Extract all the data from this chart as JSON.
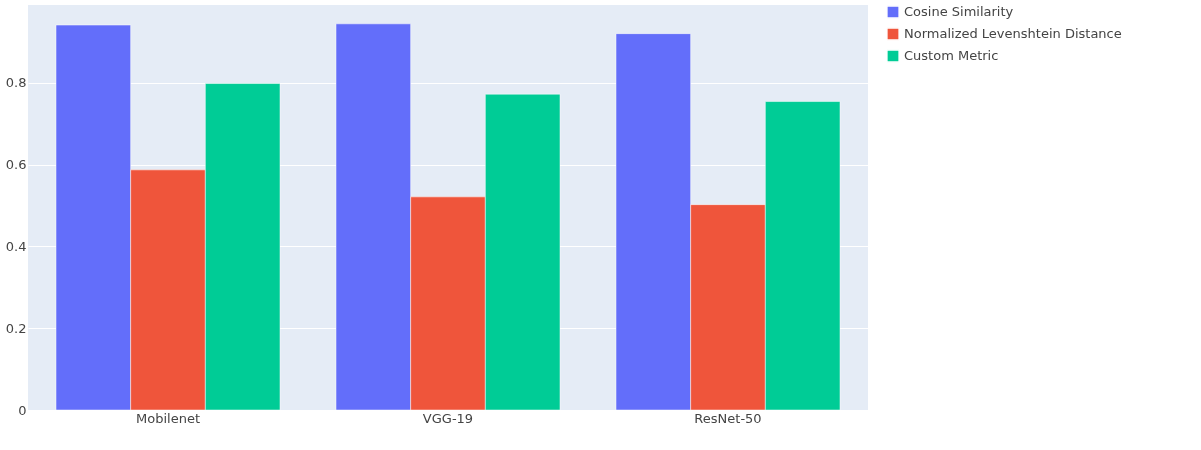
{
  "chart_data": {
    "type": "bar",
    "categories": [
      "Mobilenet",
      "VGG-19",
      "ResNet-50"
    ],
    "series": [
      {
        "name": "Cosine Similarity",
        "color": "#636efa",
        "values": [
          0.941,
          0.944,
          0.92
        ]
      },
      {
        "name": "Normalized Levenshtein Distance",
        "color": "#ef553b",
        "values": [
          0.587,
          0.521,
          0.502
        ]
      },
      {
        "name": "Custom Metric",
        "color": "#00cc96",
        "values": [
          0.798,
          0.772,
          0.754
        ]
      }
    ],
    "ylim": [
      0,
      0.99
    ],
    "yticks": [
      0,
      0.2,
      0.4,
      0.6,
      0.8
    ],
    "grid": "y",
    "legend": "top right"
  }
}
